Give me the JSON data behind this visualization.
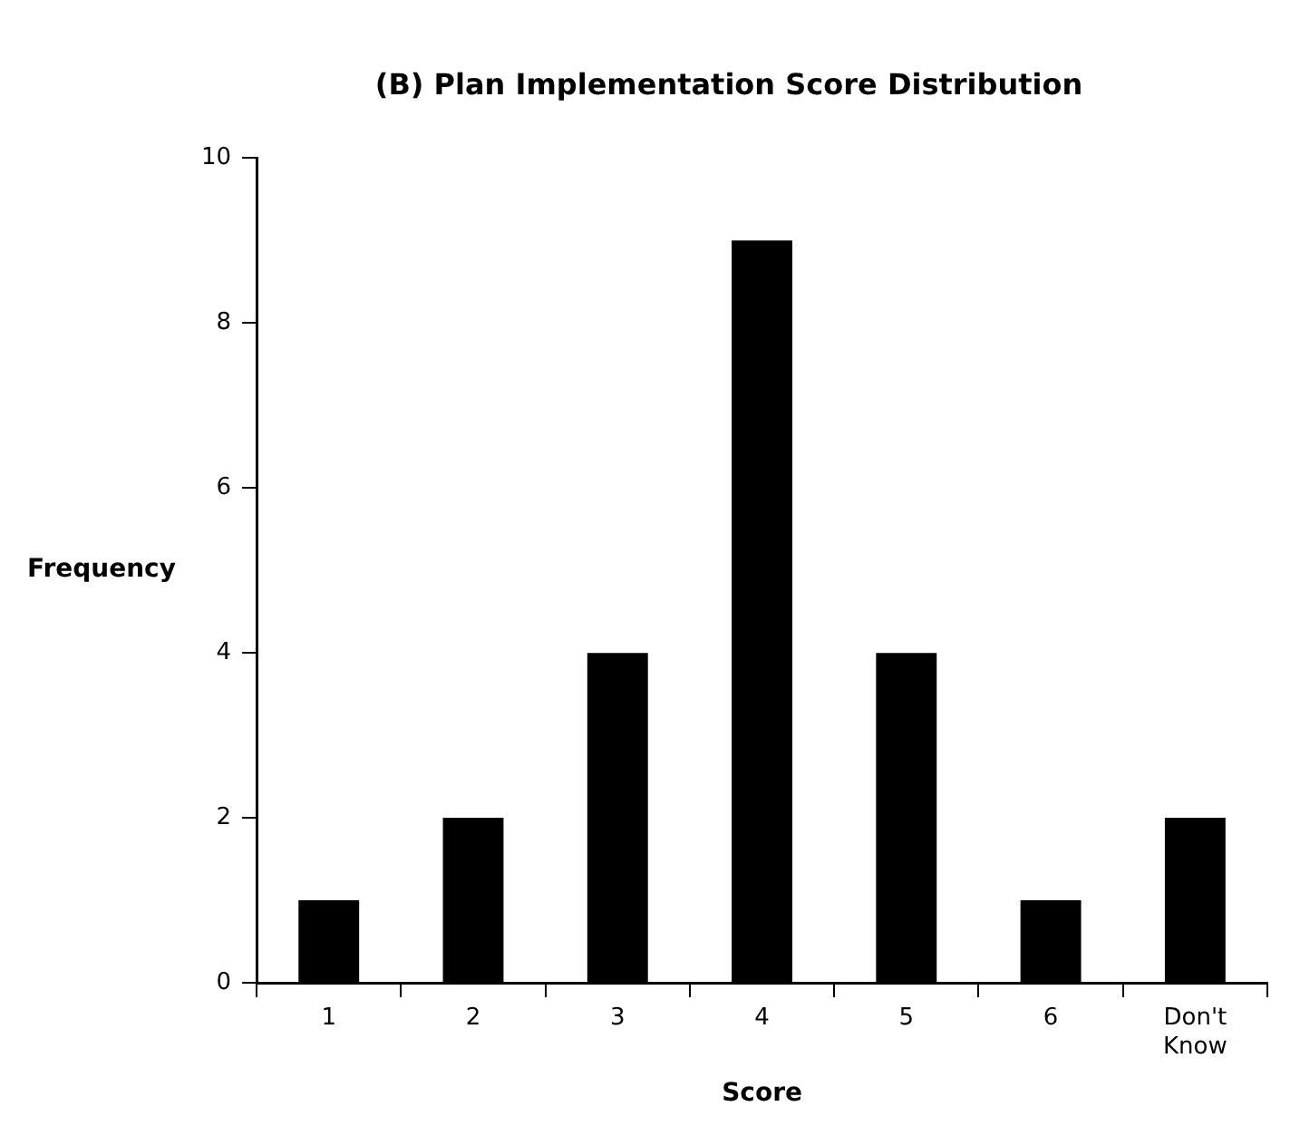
{
  "chart_data": {
    "type": "bar",
    "title": "(B) Plan Implementation Score Distribution",
    "xlabel": "Score",
    "ylabel": "Frequency",
    "categories": [
      "1",
      "2",
      "3",
      "4",
      "5",
      "6",
      "Don't Know"
    ],
    "values": [
      1,
      2,
      4,
      9,
      4,
      1,
      2
    ],
    "color": "#000000",
    "ylim": [
      0,
      10
    ],
    "yticks": [
      0,
      2,
      4,
      6,
      8,
      10
    ],
    "grid": false,
    "legend": false
  }
}
